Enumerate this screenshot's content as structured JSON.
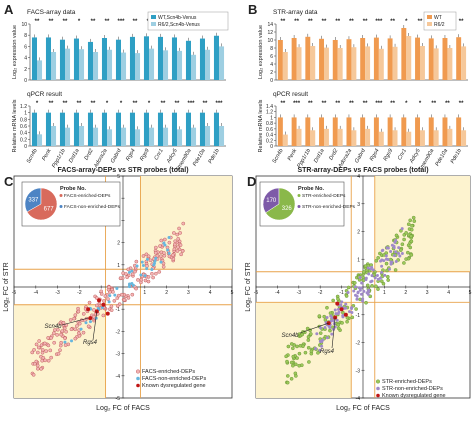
{
  "colors": {
    "facs_dark": "#2e9fc4",
    "facs_light": "#9ecfe2",
    "str_dark": "#f09a4f",
    "str_light": "#f6c89a",
    "quad_fill": "#fdf3cf",
    "axis_orange": "#e8a24a",
    "pie_c_big": "#d86a5c",
    "pie_c_small": "#4d84c4",
    "pie_d_big": "#8ab84a",
    "pie_d_small": "#7d5aa8",
    "known_gene": "#c01515"
  },
  "panels": {
    "A": {
      "letter": "A",
      "facs_label": "FACS-array data",
      "qpcr_label": "qPCR result"
    },
    "B": {
      "letter": "B",
      "str_label": "STR-array data",
      "qpcr_label": "qPCR result"
    },
    "C": {
      "letter": "C"
    },
    "D": {
      "letter": "D"
    }
  },
  "chart_data": [
    {
      "type": "bar",
      "panel": "A-top",
      "title": "FACS-array data",
      "ylabel": "Log₂ expression value",
      "yticks": [
        "10",
        "8",
        "6",
        "4",
        "2",
        "0"
      ],
      "ylim": [
        0,
        10
      ],
      "categories": [
        "Scn4b",
        "Penk",
        "Ppp1r1b",
        "Drd1a",
        "Drd2",
        "Adora2a",
        "Gabrd",
        "Rgs4",
        "Rgs9",
        "Cnr1",
        "Adcy5",
        "Tmem90a",
        "Pde10a",
        "Pde1b"
      ],
      "series": [
        {
          "name": "WT,Scn4b-Venus",
          "values": [
            7.6,
            7.6,
            7.2,
            7.4,
            6.8,
            7.5,
            7.2,
            7.7,
            7.8,
            7.7,
            7.6,
            7.0,
            7.4,
            7.9
          ]
        },
        {
          "name": "R6/2,Scn4b-Venus",
          "values": [
            3.5,
            5.0,
            5.6,
            5.5,
            5.0,
            5.4,
            4.9,
            4.8,
            5.6,
            5.3,
            5.2,
            4.5,
            5.4,
            6.0
          ]
        }
      ],
      "significance": [
        "**",
        "**",
        "**",
        "*",
        "**",
        "**",
        "***",
        "**",
        "**",
        "**",
        "***",
        "**",
        "**",
        "***"
      ]
    },
    {
      "type": "bar",
      "panel": "A-bottom",
      "title": "qPCR result",
      "ylabel": "Relative mRNA levels",
      "yticks": [
        "1.2",
        "1",
        "0.8",
        "0.6",
        "0.4",
        "0.2",
        "0"
      ],
      "ylim": [
        0,
        1.2
      ],
      "categories": [
        "Scn4b",
        "Penk",
        "Ppp1r1b",
        "Drd1a",
        "Drd2",
        "Adora2a",
        "Gabrd",
        "Rgs4",
        "Rgs9",
        "Cnr1",
        "Adcy5",
        "Tmem90a",
        "Pde10a",
        "Pde1b"
      ],
      "series": [
        {
          "name": "WT,Scn4b-Venus",
          "values": [
            1,
            1,
            1,
            1,
            1,
            1,
            1,
            1,
            1,
            1,
            1,
            1,
            1,
            1
          ]
        },
        {
          "name": "R6/2,Scn4b-Venus",
          "values": [
            0.35,
            0.6,
            0.55,
            0.6,
            0.55,
            0.5,
            0.55,
            0.5,
            0.55,
            0.55,
            0.5,
            0.55,
            0.6,
            0.6
          ]
        }
      ],
      "significance": [
        "*",
        "**",
        "**",
        "**",
        "**",
        "*",
        "*",
        "**",
        "*",
        "**",
        "**",
        "***",
        "**",
        "***"
      ]
    },
    {
      "type": "bar",
      "panel": "B-top",
      "title": "STR-array data",
      "ylabel": "Log₂ expression value",
      "yticks": [
        "14",
        "12",
        "10",
        "8",
        "6",
        "4",
        "2",
        "0"
      ],
      "ylim": [
        0,
        14
      ],
      "categories": [
        "Scn4b",
        "Penk",
        "Ppp1r1b",
        "Drd1a",
        "Drd2",
        "Adora2a",
        "Gabrd",
        "Rgs4",
        "Rgs9",
        "Cnr1",
        "Adcy5",
        "Tmem90a",
        "Pde10a",
        "Pde1b"
      ],
      "series": [
        {
          "name": "WT",
          "values": [
            10,
            10.5,
            10.8,
            10.3,
            10,
            10.2,
            10.5,
            10.6,
            10.4,
            13.0,
            10.6,
            10.4,
            10.5,
            10.7
          ]
        },
        {
          "name": "R6/2",
          "values": [
            7.0,
            8.2,
            8.5,
            8.1,
            8.0,
            8.2,
            8.4,
            7.8,
            8.3,
            11.0,
            8.5,
            7.9,
            8.0,
            8.4
          ]
        }
      ],
      "significance": [
        "**",
        "**",
        "**",
        "**",
        "**",
        "**",
        "**",
        "***",
        "**",
        "*",
        "**",
        "**",
        "**",
        "**"
      ]
    },
    {
      "type": "bar",
      "panel": "B-bottom",
      "title": "qPCR result",
      "ylabel": "Relative mRNA levels",
      "yticks": [
        "1.4",
        "1.2",
        "1",
        "0.8",
        "0.6",
        "0.4",
        "0.2",
        "0"
      ],
      "ylim": [
        0,
        1.4
      ],
      "categories": [
        "Scn4b",
        "Penk",
        "Ppp1r1b",
        "Drd1a",
        "Drd2",
        "Adora2a",
        "Gabrd",
        "Rgs4",
        "Rgs9",
        "Cnr1",
        "Adcy5",
        "Tmem90a",
        "Pde10a",
        "Pde1b"
      ],
      "series": [
        {
          "name": "WT",
          "values": [
            1,
            1,
            1,
            1,
            1,
            1,
            1,
            1,
            1,
            1,
            1,
            1,
            1,
            1
          ]
        },
        {
          "name": "R6/2",
          "values": [
            0.4,
            0.6,
            0.55,
            0.6,
            0.6,
            0.55,
            0.6,
            0.5,
            0.55,
            0.5,
            0.55,
            0.55,
            0.6,
            0.55
          ]
        }
      ],
      "significance": [
        "**",
        "***",
        "**",
        "**",
        "**",
        "**",
        "**",
        "***",
        "**",
        "*",
        "*",
        "**",
        "**",
        "**"
      ]
    },
    {
      "type": "scatter",
      "panel": "C",
      "title": "FACS-array-DEPs vs STR probes (total)",
      "xlabel": "Log₂ FC of FACS",
      "ylabel": "Log₂ FC of STR",
      "xlim": [
        -5,
        5
      ],
      "ylim": [
        -5,
        5
      ],
      "xticks": [
        "-5",
        "-4",
        "-3",
        "-2",
        "-1",
        "1",
        "2",
        "3",
        "4",
        "5"
      ],
      "yticks": [
        "5",
        "4",
        "3",
        "2",
        "1",
        "-1",
        "-2",
        "-3",
        "-4",
        "-5"
      ],
      "pie": {
        "title": "Probe No.",
        "slices": [
          {
            "label": "FACS-enriched-DEPs",
            "value": 677
          },
          {
            "label": "FACS-non-enriched-DEPs",
            "value": 337
          }
        ]
      },
      "genes": [
        "Scn4b",
        "Rgs4"
      ],
      "legend": [
        "FACS-enriched-DEPs",
        "FACS-non-enriched-DEPs",
        "Known dysregulated gene"
      ]
    },
    {
      "type": "scatter",
      "panel": "D",
      "title": "STR-array-DEPs vs FACS probes (total)",
      "xlabel": "Log₂ FC of FACS",
      "ylabel": "Log₂ FC of STR",
      "xlim": [
        -5,
        5
      ],
      "ylim": [
        -4,
        4
      ],
      "xticks": [
        "-5",
        "-4",
        "-3",
        "-2",
        "-1",
        "1",
        "2",
        "3",
        "4",
        "5"
      ],
      "yticks": [
        "4",
        "3",
        "2",
        "1",
        "-1",
        "-2",
        "-3",
        "-4"
      ],
      "pie": {
        "title": "Probe No.",
        "slices": [
          {
            "label": "STR-enriched-DEPs",
            "value": 326
          },
          {
            "label": "STR-non-enriched-DEPs",
            "value": 170
          }
        ]
      },
      "genes": [
        "Scn4b",
        "Rgs4"
      ],
      "legend": [
        "STR-enriched-DEPs",
        "STR-non-enriched-DEPs",
        "Known dysregulated gene"
      ]
    }
  ]
}
